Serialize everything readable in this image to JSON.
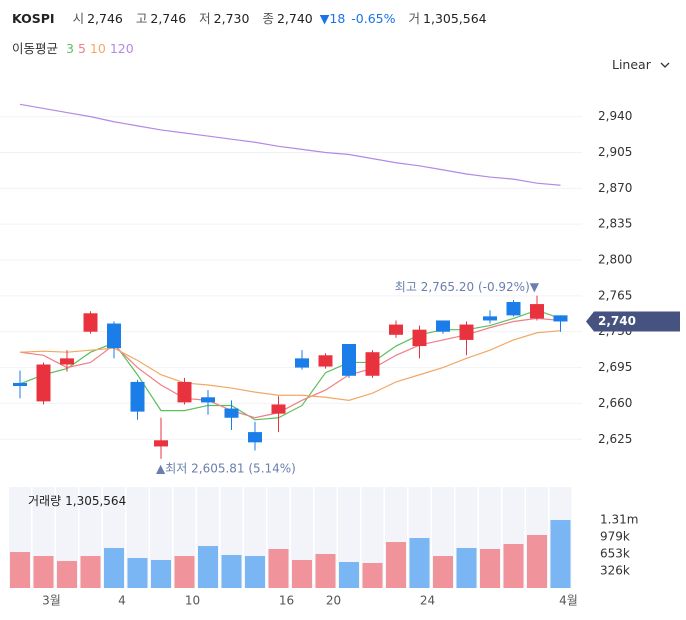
{
  "header": {
    "symbol": "KOSPI",
    "fields": [
      {
        "label": "시",
        "value": "2,746"
      },
      {
        "label": "고",
        "value": "2,746"
      },
      {
        "label": "저",
        "value": "2,730"
      },
      {
        "label": "종",
        "value": "2,740"
      }
    ],
    "change": "18",
    "change_pct": "-0.65%",
    "volume": {
      "label": "거",
      "value": "1,305,564"
    }
  },
  "scale_mode": "Linear",
  "chart_data": {
    "type": "candlestick",
    "categories": [
      null,
      "3월",
      null,
      null,
      "4",
      null,
      null,
      "10",
      null,
      null,
      null,
      "16",
      null,
      "20",
      null,
      null,
      null,
      "24",
      null,
      null,
      null,
      null,
      null,
      "4월"
    ],
    "open": [
      2680,
      2662,
      2698,
      2730,
      2738,
      2681,
      2618,
      2661,
      2666,
      2655,
      2632,
      2650,
      2704,
      2696,
      2718,
      2687,
      2727,
      2716,
      2741,
      2722,
      2745,
      2759,
      2743,
      2746
    ],
    "high": [
      2692,
      2700,
      2712,
      2750,
      2740,
      2683,
      2646,
      2685,
      2673,
      2663,
      2642,
      2667,
      2712,
      2709,
      2718,
      2712,
      2741,
      2736,
      2741,
      2740,
      2751,
      2761,
      2765.2,
      2746
    ],
    "low": [
      2665,
      2659,
      2691,
      2728,
      2704,
      2644,
      2605.81,
      2659,
      2649,
      2634,
      2614,
      2632,
      2693,
      2694,
      2685,
      2685,
      2724,
      2704,
      2728,
      2707,
      2738,
      2745,
      2741,
      2730
    ],
    "close": [
      2677,
      2698,
      2704,
      2748,
      2714,
      2652,
      2624,
      2681,
      2661,
      2646,
      2622,
      2659,
      2695,
      2707,
      2687,
      2710,
      2737,
      2732,
      2730,
      2737,
      2741,
      2746,
      2757,
      2740
    ],
    "up_color": "#e8333f",
    "down_color": "#1a7de8",
    "ylim": [
      2595,
      2966
    ],
    "yticks": [
      {
        "value": 2940,
        "label": "2,940"
      },
      {
        "value": 2905,
        "label": "2,905"
      },
      {
        "value": 2870,
        "label": "2,870"
      },
      {
        "value": 2835,
        "label": "2,835"
      },
      {
        "value": 2800,
        "label": "2,800"
      },
      {
        "value": 2765,
        "label": "2,765"
      },
      {
        "value": 2730,
        "label": "2,730"
      },
      {
        "value": 2695,
        "label": "2,695"
      },
      {
        "value": 2660,
        "label": "2,660"
      },
      {
        "value": 2625,
        "label": "2,625"
      }
    ],
    "grid": true,
    "current": {
      "value": 2740,
      "label": "2,740",
      "color": "#46527f"
    },
    "high_label": "최고 2,765.20 (-0.92%)▼",
    "low_label": "▲최저 2,605.81 (5.14%)",
    "ma_label": "이동평균",
    "moving_averages": [
      {
        "name": "3",
        "color": "#5cbf5c",
        "values": [
          2679,
          2688,
          2694,
          2710,
          2719,
          2688,
          2653,
          2653,
          2658,
          2658,
          2644,
          2646,
          2658,
          2690,
          2700,
          2700,
          2716,
          2727,
          2732,
          2732,
          2736,
          2743,
          2751,
          2743
        ]
      },
      {
        "name": "5",
        "color": "#ee7f86",
        "values": [
          2710,
          2707,
          2695,
          2700,
          2717,
          2695,
          2678,
          2665,
          2663,
          2653,
          2646,
          2651,
          2663,
          2673,
          2688,
          2694,
          2707,
          2717,
          2722,
          2727,
          2734,
          2740,
          2743,
          2741
        ]
      },
      {
        "name": "10",
        "color": "#f2a865",
        "values": [
          2710,
          2711,
          2710,
          2712,
          2714,
          2702,
          2688,
          2680,
          2678,
          2675,
          2671,
          2668,
          2668,
          2666,
          2663,
          2670,
          2681,
          2688,
          2695,
          2704,
          2712,
          2722,
          2729,
          2731
        ]
      },
      {
        "name": "120",
        "color": "#b28ae6",
        "values": [
          2952,
          2948,
          2944,
          2940,
          2935,
          2931,
          2927,
          2924,
          2921,
          2918,
          2915,
          2911,
          2908,
          2905,
          2903,
          2899,
          2895,
          2892,
          2888,
          2884,
          2881,
          2879,
          2875,
          2873
        ]
      }
    ],
    "volume": {
      "label": "거래량",
      "last": "1,305,564",
      "values": [
        691000,
        614000,
        518000,
        614000,
        768000,
        576000,
        538000,
        614000,
        806000,
        634000,
        614000,
        749000,
        538000,
        653000,
        499000,
        480000,
        883000,
        960000,
        614000,
        768000,
        749000,
        845000,
        1018000,
        1305564
      ],
      "colors": [
        "#f1939a",
        "#f1939a",
        "#f1939a",
        "#f1939a",
        "#7ab6f4",
        "#7ab6f4",
        "#7ab6f4",
        "#f1939a",
        "#7ab6f4",
        "#7ab6f4",
        "#7ab6f4",
        "#f1939a",
        "#f1939a",
        "#f1939a",
        "#7ab6f4",
        "#f1939a",
        "#f1939a",
        "#7ab6f4",
        "#f1939a",
        "#7ab6f4",
        "#f1939a",
        "#f1939a",
        "#f1939a",
        "#7ab6f4"
      ],
      "ylim": [
        0,
        1940000
      ],
      "yticks": [
        {
          "value": 1305564,
          "label": "1.31m"
        },
        {
          "value": 979173,
          "label": "979k"
        },
        {
          "value": 652782,
          "label": "653k"
        },
        {
          "value": 326391,
          "label": "326k"
        }
      ]
    }
  }
}
